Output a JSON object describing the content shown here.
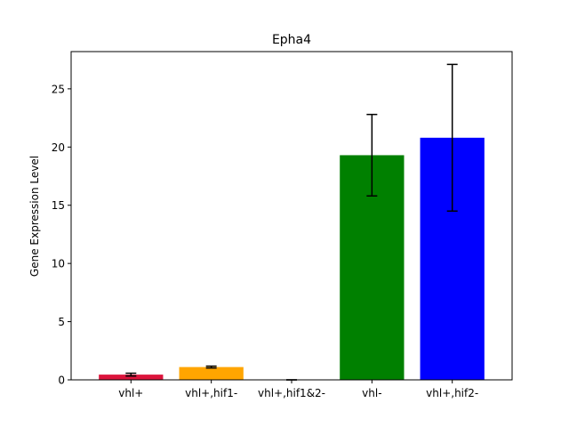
{
  "chart_data": {
    "type": "bar",
    "title": "Epha4",
    "xlabel": "",
    "ylabel": "Gene Expression Level",
    "ylim": [
      0,
      28.2
    ],
    "yticks": [
      0,
      5,
      10,
      15,
      20,
      25
    ],
    "ytick_labels": [
      "0",
      "5",
      "10",
      "15",
      "20",
      "25"
    ],
    "categories": [
      "vhl+",
      "vhl+,hif1-",
      "vhl+,hif1&2-",
      "vhl-",
      "vhl+,hif2-"
    ],
    "values": [
      0.45,
      1.1,
      0.0,
      19.3,
      20.8
    ],
    "errors": [
      0.12,
      0.08,
      0.0,
      3.5,
      6.3
    ],
    "colors": [
      "#dc143c",
      "#ffa500",
      "#808080",
      "#008000",
      "#0000ff"
    ],
    "grid": false,
    "legend": "none"
  }
}
